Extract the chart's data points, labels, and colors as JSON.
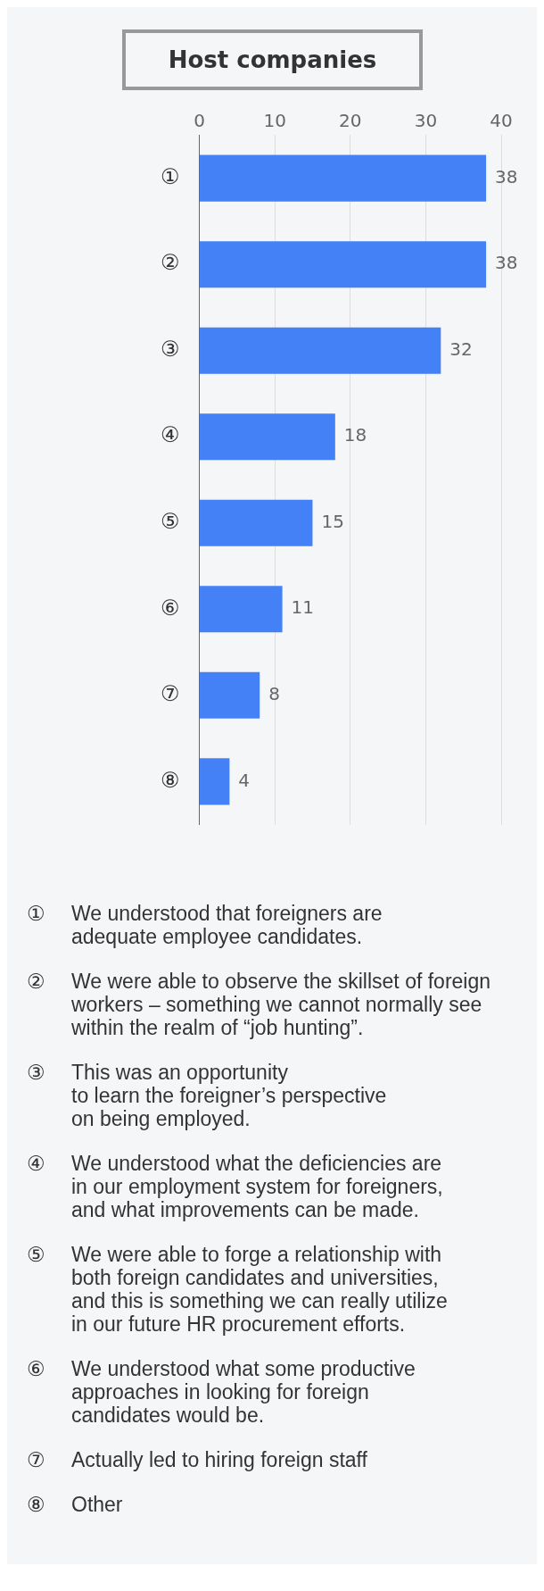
{
  "chart_data": {
    "type": "bar",
    "orientation": "horizontal",
    "title": "Host companies",
    "categories": [
      "①",
      "②",
      "③",
      "④",
      "⑤",
      "⑥",
      "⑦",
      "⑧"
    ],
    "values": [
      38,
      38,
      32,
      18,
      15,
      11,
      8,
      4
    ],
    "color": "#4581f6",
    "xlim": [
      0,
      40
    ],
    "xticks": [
      0,
      10,
      20,
      30,
      40
    ],
    "grid": "x",
    "data_labels": true,
    "legend": false,
    "annotations": [
      "①\tWe understood that foreigners are\nadequate employee candidates.",
      "②\tWe were able to observe the skillset of foreign\nworkers – something we cannot normally see\nwithin the realm of “job hunting”.",
      "③\tThis was an opportunity\nto learn the foreigner’s perspective\non being employed.",
      "④\tWe understood what the deficiencies are\nin our employment system for foreigners,\nand what improvements can be made.",
      "⑤\tWe were able to forge a relationship with\nboth foreign candidates and universities,\nand this is something we can really utilize\nin our future HR procurement efforts.",
      "⑥\tWe understood what some productive\napproaches in looking for foreign\ncandidates would be.",
      "⑦\tActually led to hiring foreign staff",
      "⑧\tOther"
    ]
  }
}
